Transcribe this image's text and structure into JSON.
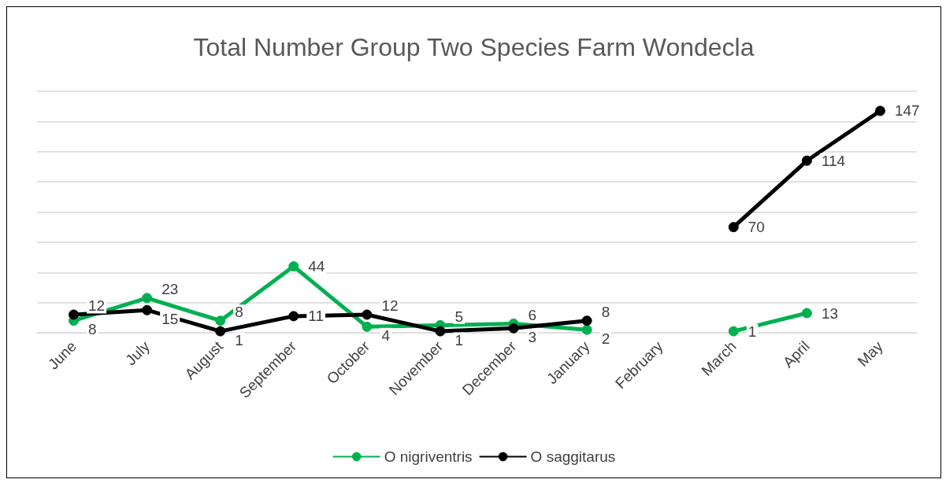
{
  "chart_data": {
    "type": "line",
    "title": "Total Number Group Two Species Farm Wondecla",
    "categories": [
      "June",
      "July",
      "August",
      "September",
      "October",
      "November",
      "December",
      "January",
      "February",
      "March",
      "April",
      "May"
    ],
    "series": [
      {
        "name": "O nigriventris",
        "color": "#00b050",
        "values": [
          8,
          23,
          8,
          44,
          4,
          5,
          6,
          2,
          null,
          1,
          13,
          null
        ]
      },
      {
        "name": "O saggitarus",
        "color": "#000000",
        "values": [
          12,
          15,
          1,
          11,
          12,
          1,
          3,
          8,
          null,
          70,
          114,
          147
        ]
      }
    ],
    "ylim": [
      0,
      160
    ],
    "yticks": [
      {
        "value": 0,
        "label": null
      },
      {
        "value": 20,
        "label": null
      },
      {
        "value": 40,
        "label": null
      },
      {
        "value": 60,
        "label": null
      },
      {
        "value": 80,
        "label": null
      },
      {
        "value": 100,
        "label": null
      },
      {
        "value": 120,
        "label": null
      },
      {
        "value": 140,
        "label": null
      },
      {
        "value": 160,
        "label": null
      }
    ],
    "tick_labels": "x",
    "grid": "y",
    "legend": "bottom",
    "marker": "circle",
    "data_labels": true
  }
}
